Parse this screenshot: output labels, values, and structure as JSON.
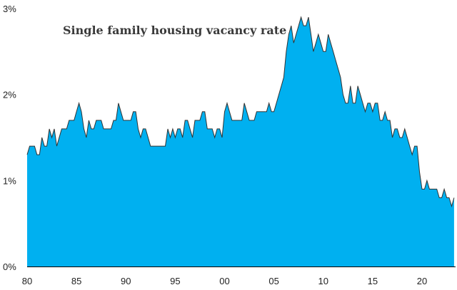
{
  "chart_data": {
    "type": "area",
    "title": "Single family housing vacancy rate",
    "xlabel": "",
    "ylabel": "",
    "frequency": "quarterly",
    "x_start": 1980.0,
    "ylim": [
      0,
      3
    ],
    "xlim": [
      1980,
      2023.4
    ],
    "y_ticks": [
      {
        "value": 0,
        "label": "0%"
      },
      {
        "value": 1,
        "label": "1%"
      },
      {
        "value": 2,
        "label": "2%"
      },
      {
        "value": 3,
        "label": "3%"
      }
    ],
    "x_ticks": [
      {
        "value": 1980,
        "label": "80"
      },
      {
        "value": 1985,
        "label": "85"
      },
      {
        "value": 1990,
        "label": "90"
      },
      {
        "value": 1995,
        "label": "95"
      },
      {
        "value": 2000,
        "label": "00"
      },
      {
        "value": 2005,
        "label": "05"
      },
      {
        "value": 2010,
        "label": "10"
      },
      {
        "value": 2015,
        "label": "15"
      },
      {
        "value": 2020,
        "label": "20"
      }
    ],
    "grid": false,
    "fill_color": "#00b0f0",
    "line_color": "#333333",
    "values": [
      1.3,
      1.4,
      1.4,
      1.4,
      1.3,
      1.3,
      1.5,
      1.4,
      1.4,
      1.6,
      1.5,
      1.6,
      1.4,
      1.5,
      1.6,
      1.6,
      1.6,
      1.7,
      1.7,
      1.7,
      1.8,
      1.9,
      1.8,
      1.6,
      1.5,
      1.7,
      1.6,
      1.6,
      1.7,
      1.7,
      1.7,
      1.6,
      1.6,
      1.6,
      1.6,
      1.7,
      1.7,
      1.9,
      1.8,
      1.7,
      1.7,
      1.7,
      1.7,
      1.8,
      1.8,
      1.6,
      1.5,
      1.6,
      1.6,
      1.5,
      1.4,
      1.4,
      1.4,
      1.4,
      1.4,
      1.4,
      1.4,
      1.6,
      1.5,
      1.6,
      1.5,
      1.6,
      1.6,
      1.5,
      1.7,
      1.7,
      1.6,
      1.5,
      1.7,
      1.7,
      1.7,
      1.8,
      1.8,
      1.6,
      1.6,
      1.6,
      1.5,
      1.6,
      1.6,
      1.5,
      1.8,
      1.9,
      1.8,
      1.7,
      1.7,
      1.7,
      1.7,
      1.7,
      1.9,
      1.8,
      1.7,
      1.7,
      1.7,
      1.8,
      1.8,
      1.8,
      1.8,
      1.8,
      1.9,
      1.8,
      1.8,
      1.9,
      2.0,
      2.1,
      2.2,
      2.5,
      2.7,
      2.8,
      2.6,
      2.7,
      2.8,
      2.9,
      2.8,
      2.8,
      2.9,
      2.7,
      2.5,
      2.6,
      2.7,
      2.6,
      2.5,
      2.5,
      2.7,
      2.6,
      2.5,
      2.4,
      2.3,
      2.2,
      2.0,
      1.9,
      1.9,
      2.1,
      1.9,
      1.9,
      2.1,
      2.0,
      1.9,
      1.8,
      1.9,
      1.9,
      1.8,
      1.9,
      1.9,
      1.7,
      1.7,
      1.8,
      1.7,
      1.7,
      1.5,
      1.6,
      1.6,
      1.5,
      1.5,
      1.6,
      1.5,
      1.4,
      1.3,
      1.4,
      1.4,
      1.1,
      0.9,
      0.9,
      1.0,
      0.9,
      0.9,
      0.9,
      0.9,
      0.8,
      0.8,
      0.9,
      0.8,
      0.8,
      0.7,
      0.8
    ]
  }
}
